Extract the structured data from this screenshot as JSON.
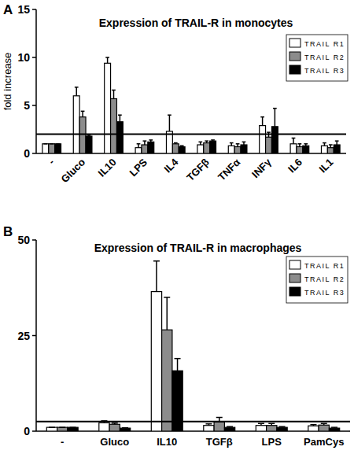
{
  "chart_data": [
    {
      "type": "bar",
      "label": "A",
      "title": "Expression of TRAIL-R in monocytes",
      "y_label": "fold increase",
      "categories": [
        "-",
        "Gluco",
        "IL10",
        "LPS",
        "IL4",
        "TGFβ",
        "TNFα",
        "INFγ",
        "IL6",
        "IL1"
      ],
      "series": [
        {
          "name": "TRAIL R1",
          "color": "#ffffff",
          "values": [
            1,
            6.0,
            9.4,
            0.6,
            2.3,
            0.9,
            0.8,
            2.9,
            1.0,
            0.8
          ],
          "errors": [
            0,
            0.9,
            0.6,
            0.4,
            1.7,
            0.3,
            0.3,
            0.9,
            0.6,
            0.3
          ]
        },
        {
          "name": "TRAIL R2",
          "color": "#8c8c8c",
          "values": [
            1,
            3.8,
            5.7,
            0.9,
            1.0,
            1.1,
            0.7,
            1.7,
            0.7,
            0.6
          ],
          "errors": [
            0,
            0.6,
            0.9,
            0.4,
            0.1,
            0.2,
            0.3,
            0.5,
            0.3,
            0.3
          ]
        },
        {
          "name": "TRAIL R3",
          "color": "#000000",
          "values": [
            1,
            1.8,
            3.3,
            1.2,
            0.7,
            1.3,
            0.9,
            2.8,
            0.8,
            0.9
          ],
          "errors": [
            0,
            0.1,
            0.7,
            0.2,
            0.1,
            0.1,
            0.3,
            1.9,
            0.2,
            0.4
          ]
        }
      ],
      "threshold": 2,
      "ylim": [
        0,
        15
      ],
      "yticks": [
        0,
        5,
        10,
        15
      ],
      "legend": "upper-right",
      "grid": false
    },
    {
      "type": "bar",
      "label": "B",
      "title": "Expression of TRAIL-R in macrophages",
      "categories": [
        "-",
        "Gluco",
        "IL10",
        "TGFβ",
        "LPS",
        "PamCys"
      ],
      "series": [
        {
          "name": "TRAIL R1",
          "color": "#ffffff",
          "values": [
            1,
            2.2,
            36.5,
            1.5,
            1.5,
            1.4
          ],
          "errors": [
            0,
            0.5,
            8,
            0.4,
            0.5,
            0.3
          ]
        },
        {
          "name": "TRAIL R2",
          "color": "#8c8c8c",
          "values": [
            1,
            1.8,
            26.5,
            2.4,
            1.5,
            1.6
          ],
          "errors": [
            0,
            0.3,
            8.5,
            1.2,
            0.5,
            0.4
          ]
        },
        {
          "name": "TRAIL R3",
          "color": "#000000",
          "values": [
            1,
            0.8,
            15.8,
            1.0,
            1.0,
            0.8
          ],
          "errors": [
            0,
            0.1,
            3.2,
            0.2,
            0.2,
            0.2
          ]
        }
      ],
      "threshold": 2.5,
      "ylim": [
        0,
        50
      ],
      "yticks": [
        0,
        25,
        50
      ],
      "legend": "upper-right",
      "grid": false
    }
  ]
}
